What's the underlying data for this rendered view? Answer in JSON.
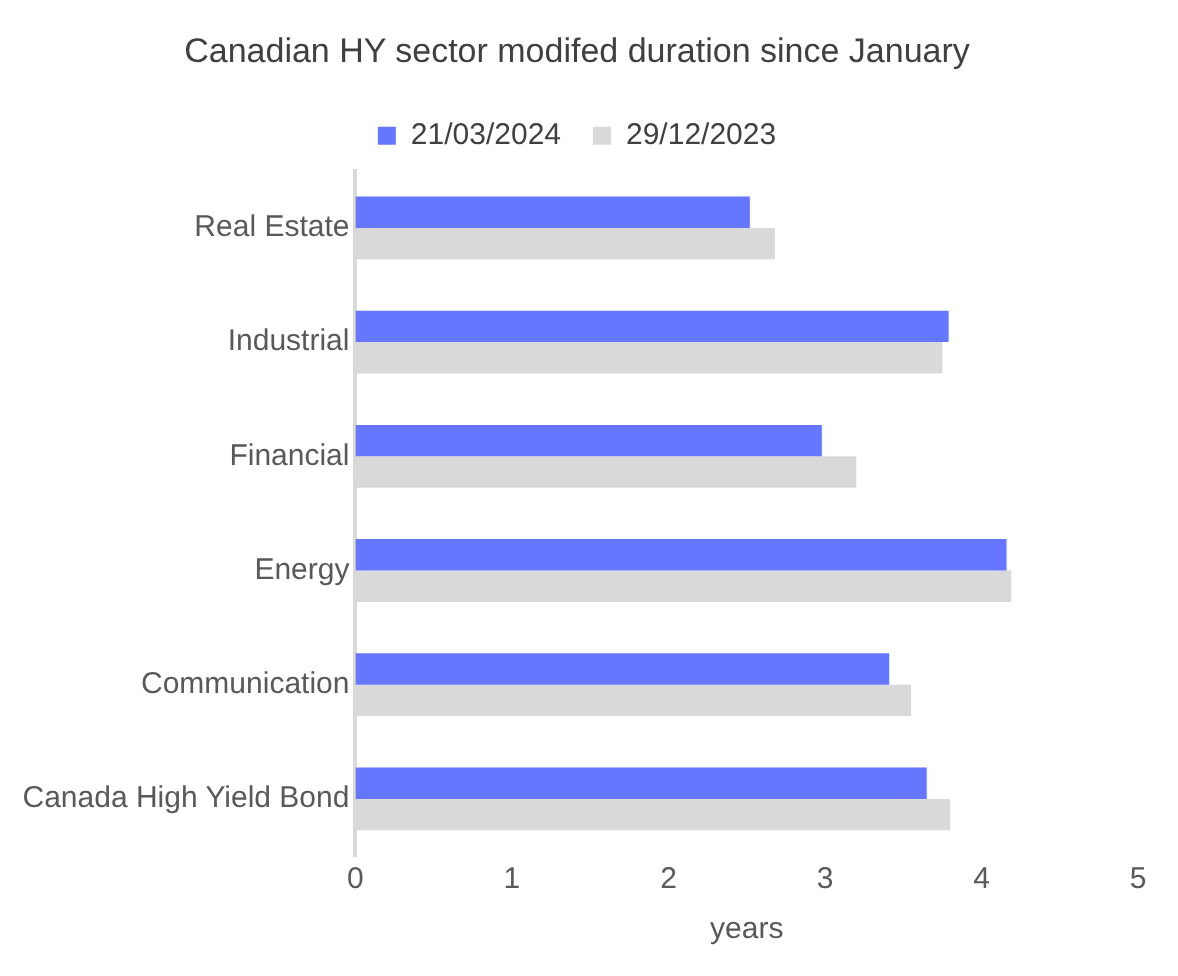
{
  "chart_data": {
    "type": "bar",
    "orientation": "horizontal",
    "title": "Canadian HY sector modifed duration since January",
    "xlabel": "years",
    "categories": [
      "Real Estate",
      "Industrial",
      "Financial",
      "Energy",
      "Communication",
      "Canada High Yield Bond"
    ],
    "series": [
      {
        "name": "21/03/2024",
        "color": "#6677ff",
        "values": [
          2.52,
          3.79,
          2.98,
          4.16,
          3.41,
          3.65
        ]
      },
      {
        "name": "29/12/2023",
        "color": "#d9d9d9",
        "values": [
          2.68,
          3.75,
          3.2,
          4.19,
          3.55,
          3.8
        ]
      }
    ],
    "xlim": [
      0,
      5
    ],
    "xticks": [
      0,
      1,
      2,
      3,
      4,
      5
    ],
    "grid": false,
    "legend": "top"
  }
}
